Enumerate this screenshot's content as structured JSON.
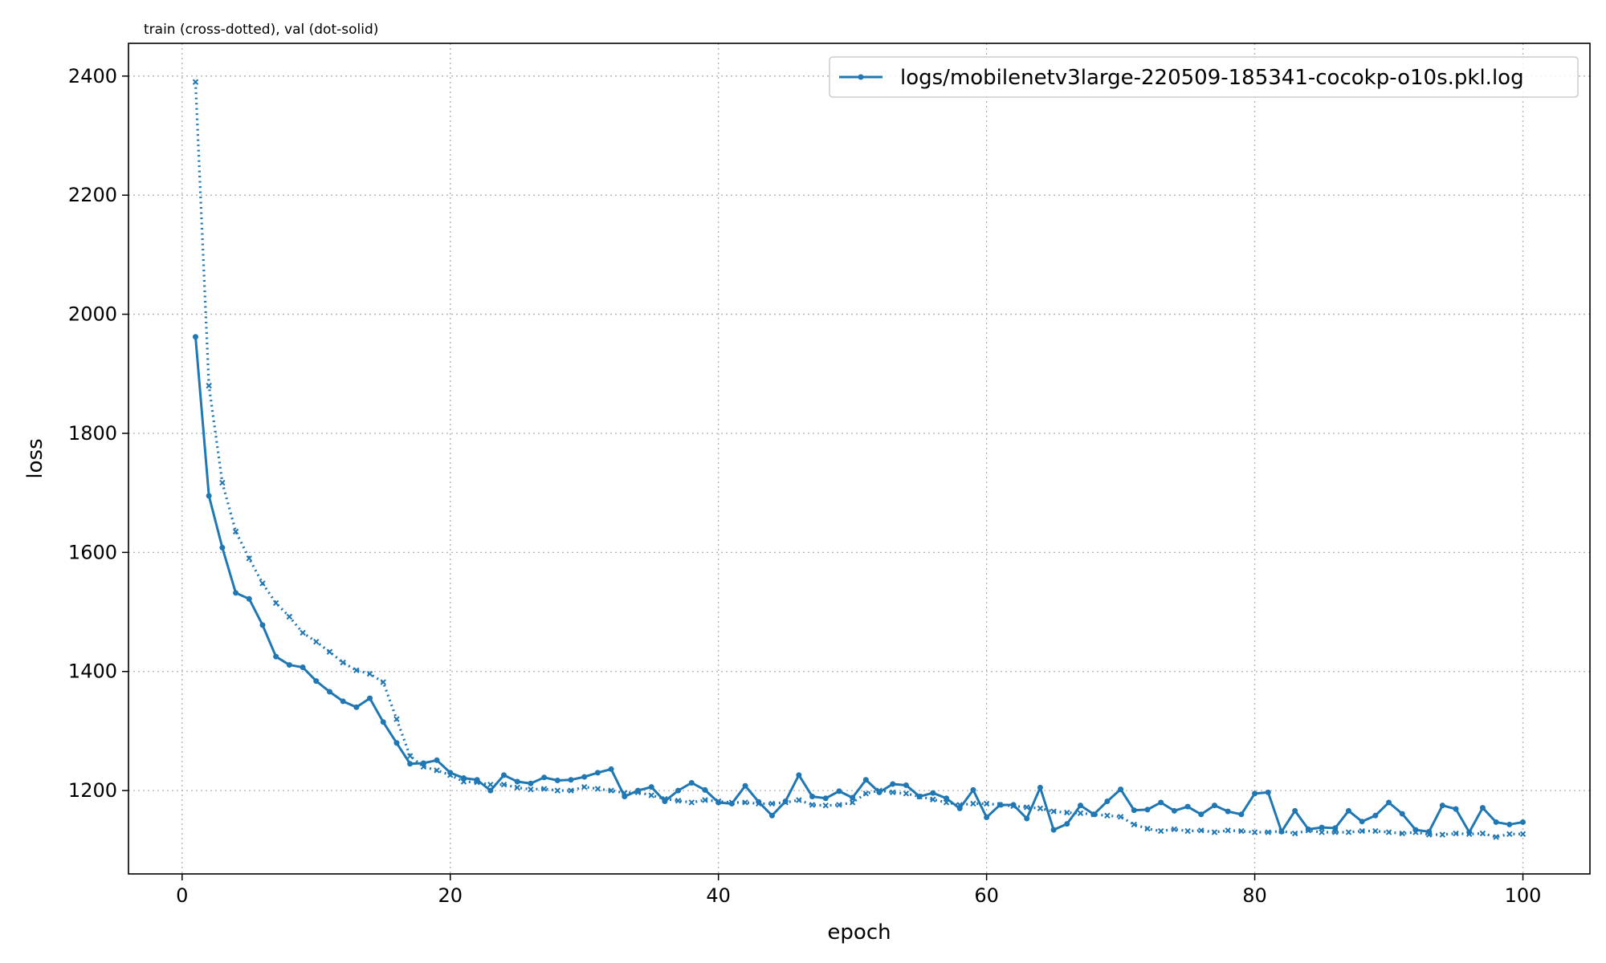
{
  "chart_data": {
    "type": "line",
    "title": "train (cross-dotted), val (dot-solid)",
    "xlabel": "epoch",
    "ylabel": "loss",
    "xlim": [
      -4,
      105
    ],
    "ylim": [
      1060,
      2455
    ],
    "xticks": [
      0,
      20,
      40,
      60,
      80,
      100
    ],
    "yticks": [
      1200,
      1400,
      1600,
      1800,
      2000,
      2200,
      2400
    ],
    "grid": true,
    "legend": {
      "placement": "top-right",
      "entries": [
        "logs/mobilenetv3large-220509-185341-cocokp-o10s.pkl.log"
      ]
    },
    "color": "#1f77b4",
    "series": [
      {
        "name": "logs/mobilenetv3large-220509-185341-cocokp-o10s.pkl.log",
        "role": "val",
        "style": "dot-solid",
        "x": [
          1,
          2,
          3,
          4,
          5,
          6,
          7,
          8,
          9,
          10,
          11,
          12,
          13,
          14,
          15,
          16,
          17,
          18,
          19,
          20,
          21,
          22,
          23,
          24,
          25,
          26,
          27,
          28,
          29,
          30,
          31,
          32,
          33,
          34,
          35,
          36,
          37,
          38,
          39,
          40,
          41,
          42,
          43,
          44,
          45,
          46,
          47,
          48,
          49,
          50,
          51,
          52,
          53,
          54,
          55,
          56,
          57,
          58,
          59,
          60,
          61,
          62,
          63,
          64,
          65,
          66,
          67,
          68,
          69,
          70,
          71,
          72,
          73,
          74,
          75,
          76,
          77,
          78,
          79,
          80,
          81,
          82,
          83,
          84,
          85,
          86,
          87,
          88,
          89,
          90,
          91,
          92,
          93,
          94,
          95,
          96,
          97,
          98,
          99,
          100
        ],
        "y": [
          1962,
          1695,
          1608,
          1532,
          1522,
          1478,
          1425,
          1411,
          1407,
          1384,
          1366,
          1350,
          1340,
          1355,
          1315,
          1280,
          1245,
          1246,
          1251,
          1230,
          1221,
          1218,
          1200,
          1226,
          1215,
          1212,
          1222,
          1217,
          1218,
          1223,
          1230,
          1236,
          1190,
          1200,
          1206,
          1182,
          1200,
          1213,
          1201,
          1180,
          1178,
          1208,
          1181,
          1158,
          1182,
          1226,
          1190,
          1187,
          1199,
          1188,
          1218,
          1197,
          1211,
          1209,
          1190,
          1196,
          1187,
          1170,
          1201,
          1155,
          1176,
          1176,
          1153,
          1205,
          1134,
          1144,
          1175,
          1160,
          1182,
          1202,
          1167,
          1168,
          1180,
          1166,
          1173,
          1160,
          1175,
          1165,
          1160,
          1195,
          1197,
          1131,
          1166,
          1135,
          1138,
          1137,
          1166,
          1148,
          1158,
          1180,
          1161,
          1134,
          1131,
          1175,
          1169,
          1130,
          1171,
          1147,
          1143,
          1147
        ]
      },
      {
        "role": "train",
        "style": "cross-dotted",
        "x": [
          1,
          2,
          3,
          4,
          5,
          6,
          7,
          8,
          9,
          10,
          11,
          12,
          13,
          14,
          15,
          16,
          17,
          18,
          19,
          20,
          21,
          22,
          23,
          24,
          25,
          26,
          27,
          28,
          29,
          30,
          31,
          32,
          33,
          34,
          35,
          36,
          37,
          38,
          39,
          40,
          41,
          42,
          43,
          44,
          45,
          46,
          47,
          48,
          49,
          50,
          51,
          52,
          53,
          54,
          55,
          56,
          57,
          58,
          59,
          60,
          61,
          62,
          63,
          64,
          65,
          66,
          67,
          68,
          69,
          70,
          71,
          72,
          73,
          74,
          75,
          76,
          77,
          78,
          79,
          80,
          81,
          82,
          83,
          84,
          85,
          86,
          87,
          88,
          89,
          90,
          91,
          92,
          93,
          94,
          95,
          96,
          97,
          98,
          99,
          100
        ],
        "y": [
          2390,
          1880,
          1717,
          1635,
          1590,
          1548,
          1515,
          1492,
          1465,
          1450,
          1433,
          1415,
          1402,
          1396,
          1382,
          1320,
          1258,
          1240,
          1234,
          1226,
          1215,
          1214,
          1210,
          1210,
          1205,
          1202,
          1203,
          1200,
          1200,
          1206,
          1203,
          1200,
          1196,
          1197,
          1192,
          1186,
          1183,
          1180,
          1184,
          1182,
          1180,
          1180,
          1178,
          1178,
          1180,
          1184,
          1176,
          1175,
          1176,
          1180,
          1195,
          1200,
          1197,
          1195,
          1190,
          1185,
          1180,
          1176,
          1178,
          1178,
          1176,
          1174,
          1172,
          1170,
          1165,
          1163,
          1162,
          1160,
          1158,
          1156,
          1143,
          1136,
          1132,
          1135,
          1132,
          1133,
          1130,
          1133,
          1132,
          1130,
          1130,
          1132,
          1128,
          1133,
          1130,
          1130,
          1130,
          1132,
          1132,
          1130,
          1128,
          1130,
          1126,
          1126,
          1128,
          1127,
          1128,
          1122,
          1127,
          1127
        ]
      }
    ]
  }
}
